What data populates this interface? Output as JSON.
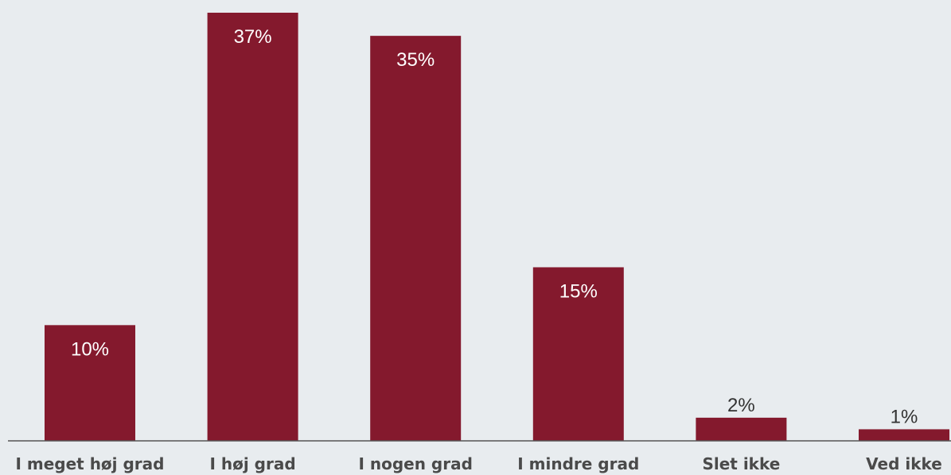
{
  "chart_data": {
    "type": "bar",
    "title": "",
    "xlabel": "",
    "ylabel": "",
    "categories": [
      "I meget høj grad",
      "I høj grad",
      "I nogen grad",
      "I mindre grad",
      "Slet ikke",
      "Ved ikke"
    ],
    "values": [
      10,
      37,
      35,
      15,
      2,
      1
    ],
    "value_labels": [
      "10%",
      "37%",
      "35%",
      "15%",
      "2%",
      "1%"
    ],
    "ylim": [
      0,
      37
    ],
    "grid": false,
    "legend": "none",
    "colors": {
      "bar": "#84192d",
      "background": "#e8ecef",
      "axis": "#555555",
      "category_text": "#4a4a4a",
      "label_inside": "#ffffff",
      "label_outside": "#333333"
    }
  }
}
